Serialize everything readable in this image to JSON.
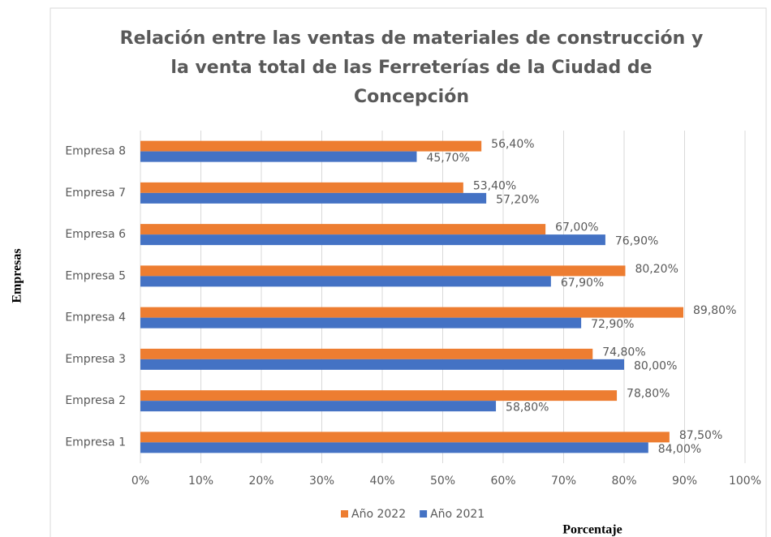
{
  "chart_data": {
    "type": "hbar",
    "title": [
      "Relación entre las ventas de materiales de construcción y",
      "la venta total de las Ferreterías de la Ciudad de",
      "Concepción"
    ],
    "xlabel": "Porcentaje",
    "ylabel": "Empresas",
    "categories": [
      "Empresa 1",
      "Empresa 2",
      "Empresa 3",
      "Empresa 4",
      "Empresa 5",
      "Empresa 6",
      "Empresa 7",
      "Empresa 8"
    ],
    "series": [
      {
        "name": "Año 2022",
        "color": "#ed7d31",
        "values": [
          87.5,
          78.8,
          74.8,
          89.8,
          80.2,
          67.0,
          53.4,
          56.4
        ],
        "value_labels": [
          "87,50%",
          "78,80%",
          "74,80%",
          "89,80%",
          "80,20%",
          "67,00%",
          "53,40%",
          "56,40%"
        ]
      },
      {
        "name": "Año 2021",
        "color": "#4472c4",
        "values": [
          84.0,
          58.8,
          80.0,
          72.9,
          67.9,
          76.9,
          57.2,
          45.7
        ],
        "value_labels": [
          "84,00%",
          "58,80%",
          "80,00%",
          "72,90%",
          "67,90%",
          "76,90%",
          "57,20%",
          "45,70%"
        ]
      }
    ],
    "xlim": [
      0,
      100
    ],
    "xticks": [
      {
        "value": 0,
        "label": "0%"
      },
      {
        "value": 10,
        "label": "10%"
      },
      {
        "value": 20,
        "label": "20%"
      },
      {
        "value": 30,
        "label": "30%"
      },
      {
        "value": 40,
        "label": "40%"
      },
      {
        "value": 50,
        "label": "50%"
      },
      {
        "value": 60,
        "label": "60%"
      },
      {
        "value": 70,
        "label": "70%"
      },
      {
        "value": 80,
        "label": "80%"
      },
      {
        "value": 90,
        "label": "90%"
      },
      {
        "value": 100,
        "label": "100%"
      }
    ],
    "grid": true,
    "legend": "bottom"
  }
}
